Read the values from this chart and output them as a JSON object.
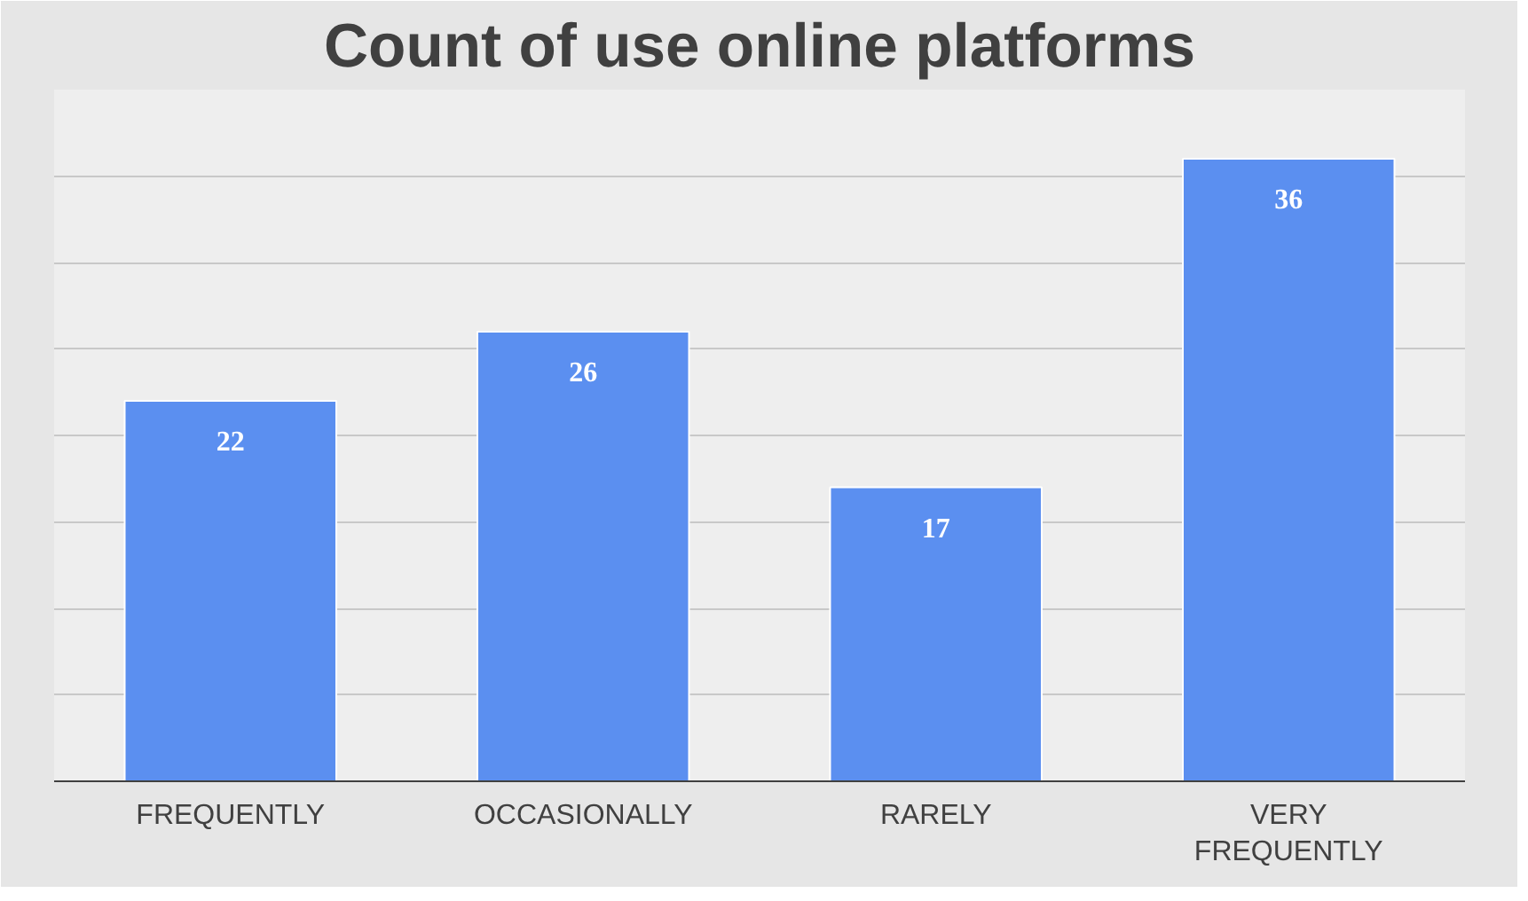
{
  "chart_data": {
    "type": "bar",
    "title": "Count of use online platforms",
    "categories": [
      "FREQUENTLY",
      "OCCASIONALLY",
      "RARELY",
      "VERY FREQUENTLY"
    ],
    "values": [
      22,
      26,
      17,
      36
    ],
    "color": "#5b8ff0",
    "ylim": [
      0,
      40
    ],
    "yticks": [
      {
        "value": 0,
        "label": null
      },
      {
        "value": 5,
        "label": null
      },
      {
        "value": 10,
        "label": null
      },
      {
        "value": 15,
        "label": null
      },
      {
        "value": 20,
        "label": null
      },
      {
        "value": 25,
        "label": null
      },
      {
        "value": 30,
        "label": null
      },
      {
        "value": 35,
        "label": null
      },
      {
        "value": 40,
        "label": null
      }
    ],
    "tick_labels": "x",
    "grid": "y",
    "data_labels": true
  }
}
